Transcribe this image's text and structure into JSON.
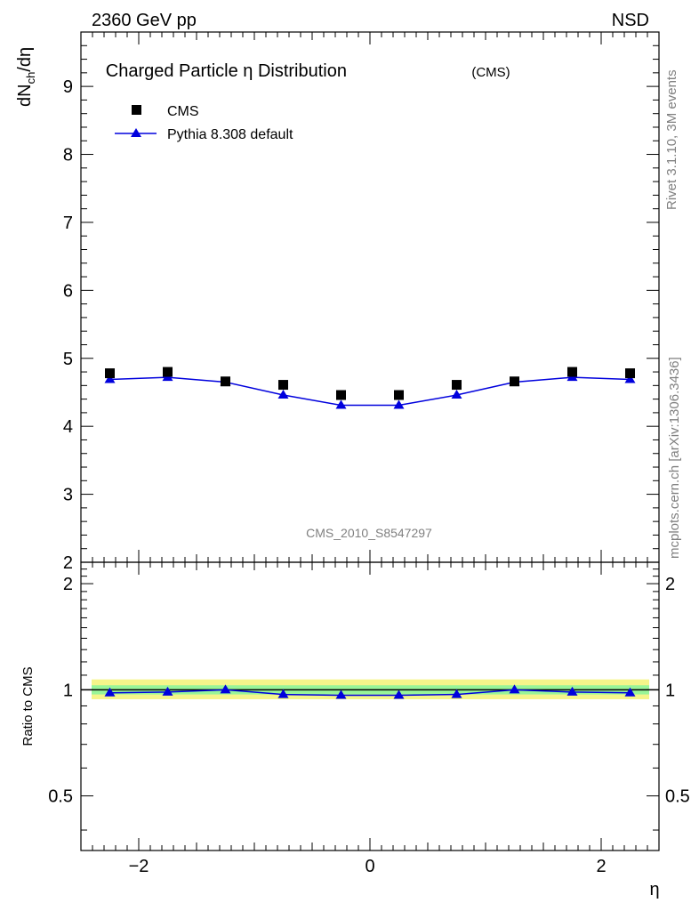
{
  "header": {
    "left": "2360 GeV pp",
    "right": "NSD",
    "title": "Charged Particle η Distribution",
    "title_suffix": "(CMS)",
    "analysis_id": "CMS_2010_S8547297",
    "side_top": "Rivet 3.1.10,  3M events",
    "side_bottom": "mcplots.cern.ch [arXiv:1306.3436]"
  },
  "chart_data": {
    "type": "scatter",
    "xlabel": "η",
    "ylabel": "dN_ch/dη",
    "ratio_ylabel": "Ratio to CMS",
    "xlim": [
      -2.5,
      2.5
    ],
    "ylim": [
      2,
      9.8
    ],
    "ratio_ylim": [
      0.35,
      2.3
    ],
    "x_ticks": [
      -2,
      0,
      2
    ],
    "x_tick_labels": [
      "−2",
      "0",
      "2"
    ],
    "y_ticks": [
      2,
      3,
      4,
      5,
      6,
      7,
      8,
      9
    ],
    "y_tick_labels": [
      "2",
      "3",
      "4",
      "5",
      "6",
      "7",
      "8",
      "9"
    ],
    "ratio_ticks": [
      0.5,
      1,
      2
    ],
    "ratio_tick_labels": [
      "0.5",
      "1",
      "2"
    ],
    "x": [
      -2.25,
      -1.75,
      -1.25,
      -0.75,
      -0.25,
      0.25,
      0.75,
      1.25,
      1.75,
      2.25
    ],
    "series": [
      {
        "name": "CMS",
        "marker": "square",
        "color": "#000000",
        "values": [
          4.78,
          4.8,
          4.66,
          4.61,
          4.46,
          4.46,
          4.61,
          4.66,
          4.8,
          4.78
        ]
      },
      {
        "name": "Pythia 8.308 default",
        "marker": "triangle",
        "color": "#0000dd",
        "values": [
          4.69,
          4.72,
          4.65,
          4.46,
          4.31,
          4.31,
          4.46,
          4.65,
          4.72,
          4.69
        ]
      }
    ],
    "ratio": {
      "values": [
        0.98,
        0.985,
        1.0,
        0.97,
        0.965,
        0.965,
        0.97,
        1.0,
        0.985,
        0.98
      ],
      "band_inner": [
        0.97,
        1.03
      ],
      "band_outer": [
        0.94,
        1.07
      ],
      "band_inner_color": "#98f598",
      "band_outer_color": "#f5f58a"
    },
    "legend_position": "top-left"
  }
}
